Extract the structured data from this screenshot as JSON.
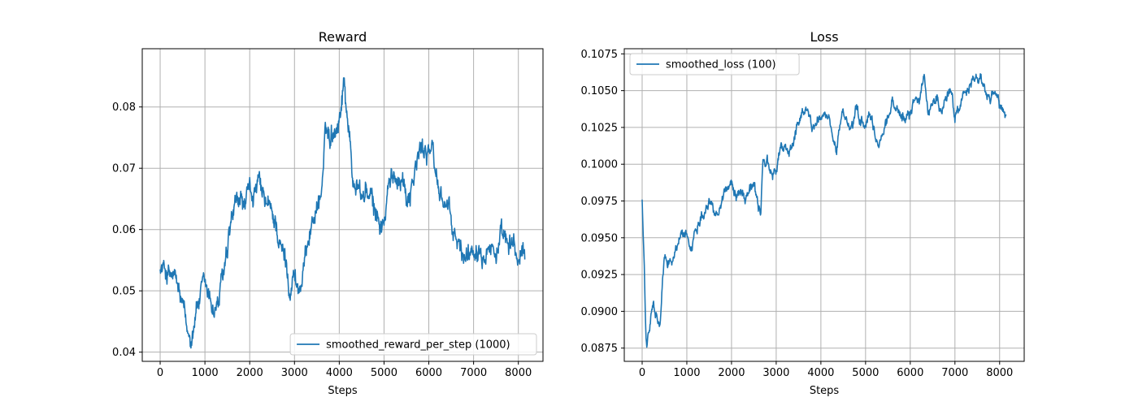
{
  "chart_data": [
    {
      "id": "reward",
      "type": "line",
      "title": "Reward",
      "xlabel": "Steps",
      "ylabel": "",
      "xlim": [
        -400,
        8550
      ],
      "ylim": [
        0.0385,
        0.0895
      ],
      "xticks": [
        0,
        1000,
        2000,
        3000,
        4000,
        5000,
        6000,
        7000,
        8000
      ],
      "yticks": [
        0.04,
        0.05,
        0.06,
        0.07,
        0.08
      ],
      "ytick_labels": [
        "0.04",
        "0.05",
        "0.06",
        "0.07",
        "0.08"
      ],
      "grid": true,
      "legend_position": "lower-right",
      "series": [
        {
          "name": "smoothed_reward_per_step (1000)",
          "color": "#1f77b4",
          "noise": 0.0022,
          "x": [
            0,
            100,
            200,
            300,
            400,
            500,
            550,
            600,
            700,
            800,
            900,
            1000,
            1100,
            1200,
            1300,
            1400,
            1500,
            1600,
            1700,
            1800,
            1900,
            2000,
            2100,
            2200,
            2300,
            2400,
            2500,
            2600,
            2700,
            2800,
            2900,
            3000,
            3100,
            3200,
            3300,
            3400,
            3500,
            3600,
            3700,
            3800,
            3900,
            4000,
            4100,
            4200,
            4300,
            4400,
            4500,
            4600,
            4700,
            4800,
            4900,
            5000,
            5100,
            5200,
            5300,
            5400,
            5500,
            5600,
            5700,
            5800,
            5900,
            6000,
            6100,
            6200,
            6300,
            6400,
            6500,
            6600,
            6700,
            6800,
            6900,
            7000,
            7100,
            7200,
            7300,
            7400,
            7500,
            7600,
            7700,
            7800,
            7900,
            8000,
            8100,
            8150
          ],
          "y": [
            0.0535,
            0.0535,
            0.0525,
            0.052,
            0.05,
            0.047,
            0.045,
            0.0425,
            0.043,
            0.0475,
            0.049,
            0.05,
            0.0485,
            0.047,
            0.048,
            0.052,
            0.055,
            0.061,
            0.063,
            0.0645,
            0.0635,
            0.0655,
            0.066,
            0.067,
            0.0645,
            0.0635,
            0.062,
            0.061,
            0.0565,
            0.055,
            0.051,
            0.053,
            0.05,
            0.0525,
            0.059,
            0.0615,
            0.064,
            0.066,
            0.0755,
            0.0755,
            0.077,
            0.0785,
            0.0845,
            0.078,
            0.068,
            0.0675,
            0.065,
            0.0665,
            0.0645,
            0.0625,
            0.0615,
            0.0605,
            0.0665,
            0.068,
            0.069,
            0.0695,
            0.0655,
            0.0675,
            0.07,
            0.0725,
            0.073,
            0.074,
            0.0715,
            0.067,
            0.0655,
            0.064,
            0.0605,
            0.058,
            0.0565,
            0.0555,
            0.0565,
            0.0575,
            0.0585,
            0.0575,
            0.059,
            0.0575,
            0.0565,
            0.058,
            0.0575,
            0.056,
            0.0575,
            0.0545,
            0.0555,
            0.0555
          ]
        }
      ]
    },
    {
      "id": "loss",
      "type": "line",
      "title": "Loss",
      "xlabel": "Steps",
      "ylabel": "",
      "xlim": [
        -400,
        8550
      ],
      "ylim": [
        0.0866,
        0.10785
      ],
      "xticks": [
        0,
        1000,
        2000,
        3000,
        4000,
        5000,
        6000,
        7000,
        8000
      ],
      "yticks": [
        0.0875,
        0.09,
        0.0925,
        0.095,
        0.0975,
        0.1,
        0.1025,
        0.105,
        0.1075
      ],
      "ytick_labels": [
        "0.0875",
        "0.0900",
        "0.0925",
        "0.0950",
        "0.0975",
        "0.1000",
        "0.1025",
        "0.1050",
        "0.1075"
      ],
      "grid": true,
      "legend_position": "upper-left",
      "series": [
        {
          "name": "smoothed_loss (100)",
          "color": "#1f77b4",
          "noise": 0.00045,
          "x": [
            0,
            50,
            80,
            100,
            150,
            200,
            250,
            300,
            350,
            400,
            450,
            500,
            600,
            700,
            800,
            900,
            1000,
            1100,
            1200,
            1300,
            1400,
            1500,
            1600,
            1700,
            1800,
            1900,
            2000,
            2100,
            2200,
            2300,
            2400,
            2500,
            2600,
            2650,
            2700,
            2800,
            2900,
            3000,
            3100,
            3200,
            3300,
            3400,
            3500,
            3600,
            3700,
            3800,
            3900,
            4000,
            4100,
            4200,
            4300,
            4350,
            4400,
            4500,
            4600,
            4700,
            4800,
            4900,
            5000,
            5100,
            5200,
            5300,
            5400,
            5500,
            5600,
            5700,
            5800,
            5900,
            6000,
            6100,
            6200,
            6300,
            6400,
            6500,
            6600,
            6700,
            6800,
            6900,
            7000,
            7100,
            7200,
            7300,
            7400,
            7500,
            7600,
            7700,
            7800,
            7900,
            8000,
            8100,
            8150
          ],
          "y": [
            0.0976,
            0.0925,
            0.0885,
            0.0876,
            0.0885,
            0.0895,
            0.0905,
            0.0895,
            0.0892,
            0.089,
            0.0915,
            0.0935,
            0.0935,
            0.0938,
            0.0945,
            0.0955,
            0.095,
            0.0945,
            0.0955,
            0.0965,
            0.097,
            0.0975,
            0.097,
            0.0968,
            0.098,
            0.0985,
            0.0985,
            0.0978,
            0.0985,
            0.0978,
            0.0985,
            0.0985,
            0.097,
            0.0965,
            0.1,
            0.1005,
            0.099,
            0.0995,
            0.1012,
            0.101,
            0.101,
            0.1018,
            0.1028,
            0.1038,
            0.1038,
            0.1025,
            0.1028,
            0.1035,
            0.1032,
            0.1025,
            0.1012,
            0.1008,
            0.1022,
            0.1038,
            0.1025,
            0.1023,
            0.1035,
            0.1028,
            0.1028,
            0.1033,
            0.1018,
            0.1012,
            0.1025,
            0.1032,
            0.1042,
            0.1038,
            0.1028,
            0.1032,
            0.1035,
            0.1048,
            0.1045,
            0.106,
            0.1035,
            0.104,
            0.1048,
            0.1035,
            0.1045,
            0.1055,
            0.1032,
            0.1038,
            0.1045,
            0.1048,
            0.1058,
            0.1058,
            0.1058,
            0.1045,
            0.1042,
            0.1048,
            0.1038,
            0.1035,
            0.1028
          ]
        }
      ]
    }
  ]
}
